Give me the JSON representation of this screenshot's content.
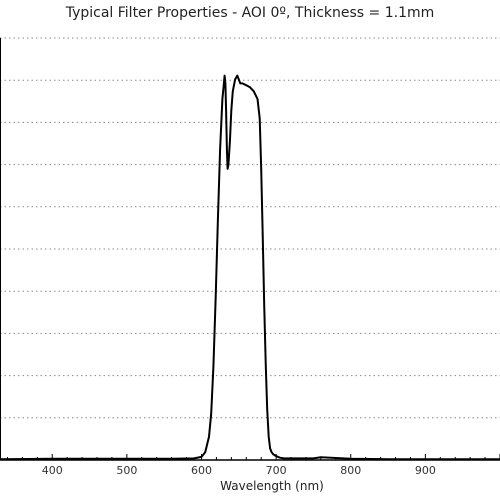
{
  "chart_data": {
    "type": "line",
    "title": "Typical Filter Properties - AOI 0º, Thickness = 1.1mm",
    "xlabel": "Wavelength (nm)",
    "ylabel": "",
    "xlim": [
      330,
      1000
    ],
    "ylim": [
      0,
      100
    ],
    "x_ticks": [
      400,
      500,
      600,
      700,
      800,
      900
    ],
    "grid": "horizontal-dotted",
    "legend": "none",
    "series": [
      {
        "color": "#000000",
        "x": [
          330,
          400,
          500,
          560,
          590,
          600,
          605,
          610,
          613,
          616,
          619,
          622,
          625,
          628,
          630,
          631,
          632,
          633,
          634,
          635,
          636,
          638,
          640,
          642,
          645,
          648,
          650,
          652,
          655,
          660,
          665,
          670,
          675,
          678,
          680,
          682,
          684,
          686,
          688,
          690,
          692,
          694,
          696,
          700,
          705,
          710,
          750,
          760,
          800,
          850,
          900,
          1000
        ],
        "y": [
          0.2,
          0.3,
          0.3,
          0.3,
          0.4,
          0.8,
          2,
          6,
          12,
          24,
          42,
          62,
          80,
          93,
          97,
          99,
          97,
          90,
          80,
          75,
          76,
          82,
          90,
          95,
          98,
          99,
          98,
          97,
          97,
          96.5,
          96,
          95,
          93,
          88,
          75,
          58,
          40,
          25,
          13,
          6,
          3,
          2,
          1.5,
          1,
          0.6,
          0.4,
          0.4,
          0.7,
          0.3,
          0.2,
          0.2,
          0.2
        ]
      }
    ]
  }
}
